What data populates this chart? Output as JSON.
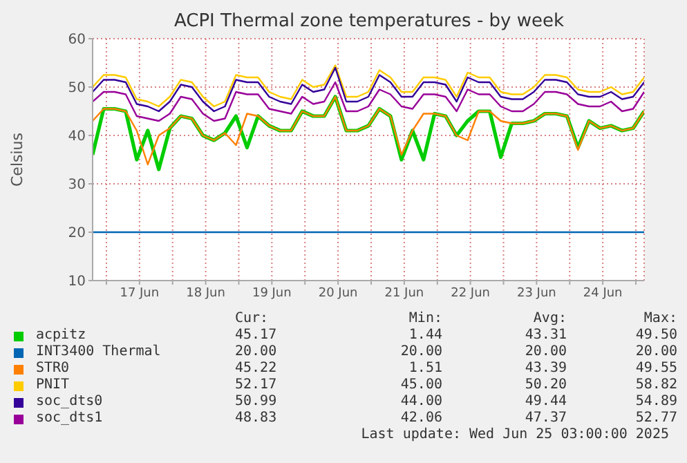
{
  "chart_data": {
    "type": "line",
    "title": "ACPI Thermal zone temperatures - by week",
    "ylabel": "Celsius",
    "x": [
      "2025-06-16T19:00",
      "2025-06-16T23:00",
      "2025-06-17T03:00",
      "2025-06-17T07:00",
      "2025-06-17T11:00",
      "2025-06-17T15:00",
      "2025-06-17T19:00",
      "2025-06-17T23:00",
      "2025-06-18T03:00",
      "2025-06-18T07:00",
      "2025-06-18T11:00",
      "2025-06-18T15:00",
      "2025-06-18T19:00",
      "2025-06-18T23:00",
      "2025-06-19T03:00",
      "2025-06-19T07:00",
      "2025-06-19T11:00",
      "2025-06-19T15:00",
      "2025-06-19T19:00",
      "2025-06-19T23:00",
      "2025-06-20T03:00",
      "2025-06-20T07:00",
      "2025-06-20T11:00",
      "2025-06-20T15:00",
      "2025-06-20T19:00",
      "2025-06-20T23:00",
      "2025-06-21T03:00",
      "2025-06-21T07:00",
      "2025-06-21T11:00",
      "2025-06-21T15:00",
      "2025-06-21T19:00",
      "2025-06-21T23:00",
      "2025-06-22T03:00",
      "2025-06-22T07:00",
      "2025-06-22T11:00",
      "2025-06-22T15:00",
      "2025-06-22T19:00",
      "2025-06-22T23:00",
      "2025-06-23T03:00",
      "2025-06-23T07:00",
      "2025-06-23T11:00",
      "2025-06-23T15:00",
      "2025-06-23T19:00",
      "2025-06-23T23:00",
      "2025-06-24T03:00",
      "2025-06-24T07:00",
      "2025-06-24T11:00",
      "2025-06-24T15:00",
      "2025-06-24T19:00",
      "2025-06-24T23:00",
      "2025-06-25T03:00"
    ],
    "series": [
      {
        "name": "acpitz",
        "color": "#00cc00",
        "values": [
          36,
          45.5,
          45.5,
          45,
          35,
          41,
          33,
          41.5,
          44,
          43.5,
          40,
          39,
          40.5,
          44,
          37.5,
          44,
          42,
          41,
          41,
          45,
          44,
          44,
          48,
          41,
          41,
          42,
          45.5,
          44,
          35,
          41,
          35,
          44.5,
          44,
          40,
          43,
          45,
          45,
          35.5,
          42.5,
          42.5,
          43,
          44.5,
          44.5,
          44,
          37.5,
          43,
          41.5,
          42,
          41,
          41.5,
          45
        ]
      },
      {
        "name": "INT3400 Thermal",
        "color": "#0066b3",
        "x": [
          "2025-06-16T19:00",
          "2025-06-25T03:00"
        ],
        "values": [
          20,
          20
        ]
      },
      {
        "name": "STR0",
        "color": "#ff8000",
        "values": [
          43,
          45.5,
          45.5,
          45,
          41,
          34,
          40,
          41.5,
          44,
          43.5,
          40,
          39,
          40.5,
          38,
          44.5,
          44,
          42,
          41,
          41,
          45,
          44,
          44,
          48,
          41,
          41,
          42,
          45.5,
          44,
          36,
          41,
          44.5,
          44.5,
          44,
          40,
          39,
          45,
          45,
          43,
          42.5,
          42.5,
          43,
          44.5,
          44.5,
          44,
          37,
          43,
          41.5,
          42,
          41,
          41.5,
          45
        ]
      },
      {
        "name": "PNIT",
        "color": "#ffcc00",
        "values": [
          50,
          52.5,
          52.5,
          52,
          47.5,
          47,
          46,
          48,
          51.5,
          51,
          48,
          46,
          47,
          52.5,
          52,
          52,
          49,
          48,
          47.5,
          51.5,
          50,
          50.5,
          54.5,
          48,
          48,
          49,
          53.5,
          52,
          49,
          49,
          52,
          52,
          51.5,
          48,
          53,
          52,
          52,
          49,
          48.5,
          48.5,
          50,
          52.5,
          52.5,
          52,
          49.5,
          49,
          49,
          50,
          48.5,
          49,
          52
        ]
      },
      {
        "name": "soc_dts0",
        "color": "#330099",
        "values": [
          49,
          51.5,
          51.5,
          51,
          46.5,
          46,
          45,
          47,
          50.5,
          50,
          47,
          45,
          46,
          51.5,
          51,
          51,
          48,
          47,
          46.5,
          50.5,
          49,
          49.5,
          54,
          47,
          47,
          48,
          52.5,
          51,
          48,
          48,
          51,
          51,
          50.5,
          47,
          52,
          51,
          51,
          48,
          47.5,
          47.5,
          49,
          51.5,
          51.5,
          51,
          48.5,
          48,
          48,
          49,
          47.5,
          48,
          51
        ]
      },
      {
        "name": "soc_dts1",
        "color": "#990099",
        "values": [
          47,
          49,
          49,
          48.5,
          44,
          43.5,
          43,
          44.5,
          48,
          47.5,
          44.5,
          43,
          43.5,
          49,
          48.5,
          48.5,
          45.5,
          45,
          44.5,
          48,
          46.5,
          47,
          51,
          45,
          45,
          46,
          49.5,
          48.5,
          46,
          45.5,
          48.5,
          48.5,
          48,
          45,
          49.5,
          48.5,
          48.5,
          46,
          45,
          45,
          46.5,
          49,
          49,
          48.5,
          46.5,
          46,
          46,
          47,
          45,
          45.5,
          49
        ]
      }
    ],
    "xlim": [
      "2025-06-16T19:00",
      "2025-06-25T03:00"
    ],
    "xticks": [
      {
        "value": "2025-06-17T00:00",
        "label": null
      },
      {
        "value": "2025-06-17T12:00",
        "label": "17 Jun"
      },
      {
        "value": "2025-06-18T00:00",
        "label": null
      },
      {
        "value": "2025-06-18T12:00",
        "label": "18 Jun"
      },
      {
        "value": "2025-06-19T00:00",
        "label": null
      },
      {
        "value": "2025-06-19T12:00",
        "label": "19 Jun"
      },
      {
        "value": "2025-06-20T00:00",
        "label": null
      },
      {
        "value": "2025-06-20T12:00",
        "label": "20 Jun"
      },
      {
        "value": "2025-06-21T00:00",
        "label": null
      },
      {
        "value": "2025-06-21T12:00",
        "label": "21 Jun"
      },
      {
        "value": "2025-06-22T00:00",
        "label": null
      },
      {
        "value": "2025-06-22T12:00",
        "label": "22 Jun"
      },
      {
        "value": "2025-06-23T00:00",
        "label": null
      },
      {
        "value": "2025-06-23T12:00",
        "label": "23 Jun"
      },
      {
        "value": "2025-06-24T00:00",
        "label": null
      },
      {
        "value": "2025-06-24T12:00",
        "label": "24 Jun"
      },
      {
        "value": "2025-06-25T00:00",
        "label": null
      }
    ],
    "ylim": [
      10,
      60
    ],
    "yticks": [
      10,
      20,
      30,
      40,
      50,
      60
    ],
    "grid": true,
    "legend": "bottom",
    "marker": "none",
    "line_style": "solid",
    "annotations": [
      "Cur:",
      "Min:",
      "Avg:",
      "Max:",
      "45.17",
      "1.44",
      "43.31",
      "49.50",
      "20.00",
      "20.00",
      "20.00",
      "20.00",
      "45.22",
      "1.51",
      "43.39",
      "49.55",
      "52.17",
      "45.00",
      "50.20",
      "58.82",
      "50.99",
      "44.00",
      "49.44",
      "54.89",
      "48.83",
      "42.06",
      "47.37",
      "52.77",
      "Last update: Wed Jun 25 03:00:00 2025"
    ]
  }
}
